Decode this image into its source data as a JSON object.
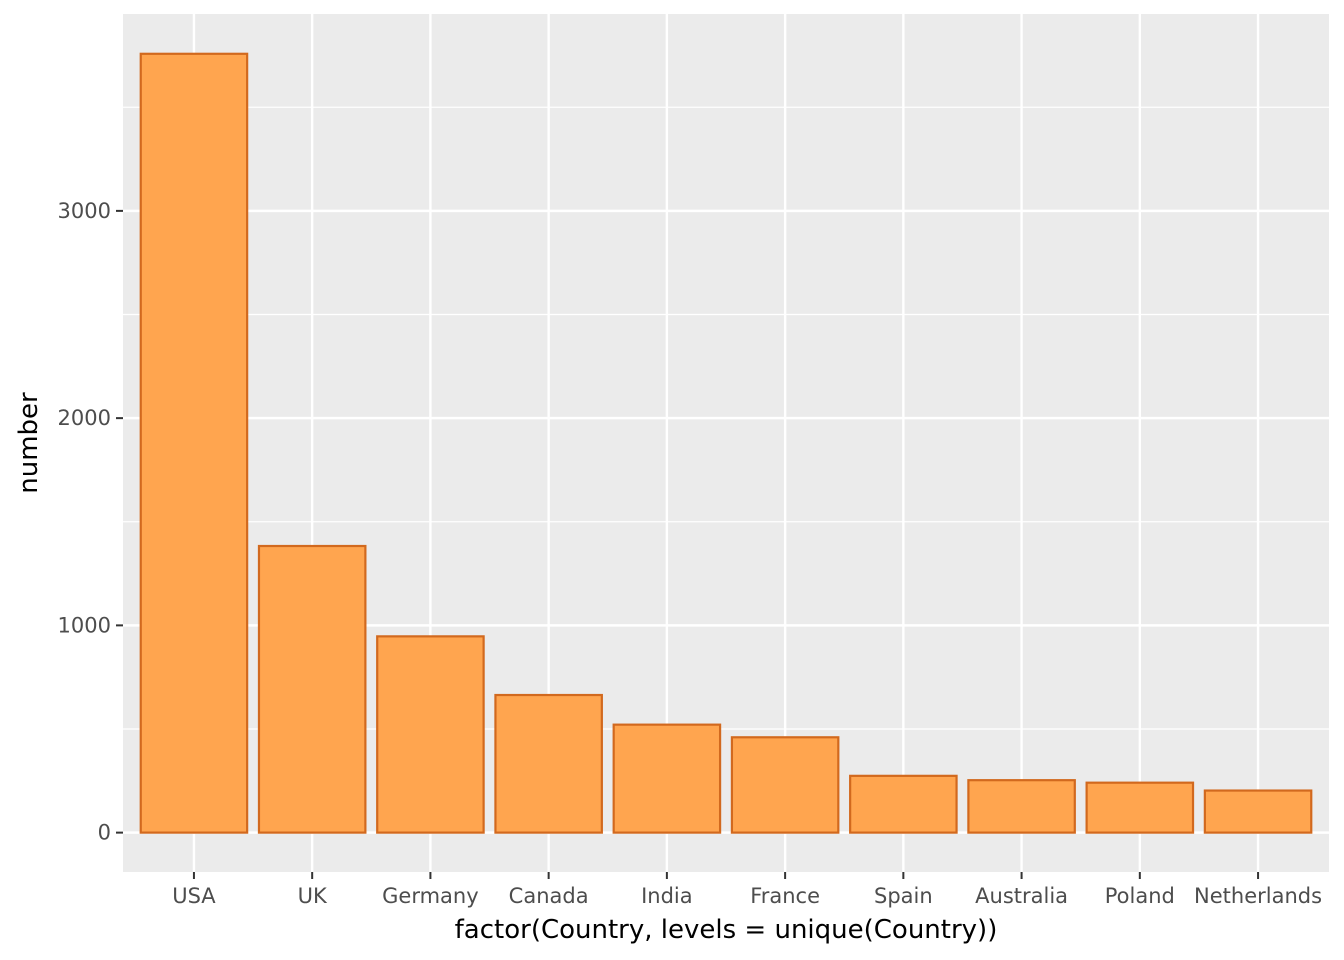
{
  "chart_data": {
    "type": "bar",
    "categories": [
      "USA",
      "UK",
      "Germany",
      "Canada",
      "India",
      "France",
      "Spain",
      "Australia",
      "Poland",
      "Netherlands"
    ],
    "values": [
      3758,
      1383,
      947,
      664,
      521,
      460,
      274,
      253,
      241,
      203
    ],
    "xlabel": "factor(Country, levels = unique(Country))",
    "ylabel": "number",
    "ylim": [
      -190,
      3950
    ],
    "yticks": [
      0,
      1000,
      2000,
      3000
    ],
    "grid": true,
    "legend": "none",
    "colors": {
      "bar_fill": "#FFA54F",
      "bar_stroke": "#D2691E",
      "panel_bg": "#EBEBEB",
      "grid": "#FFFFFF"
    }
  }
}
